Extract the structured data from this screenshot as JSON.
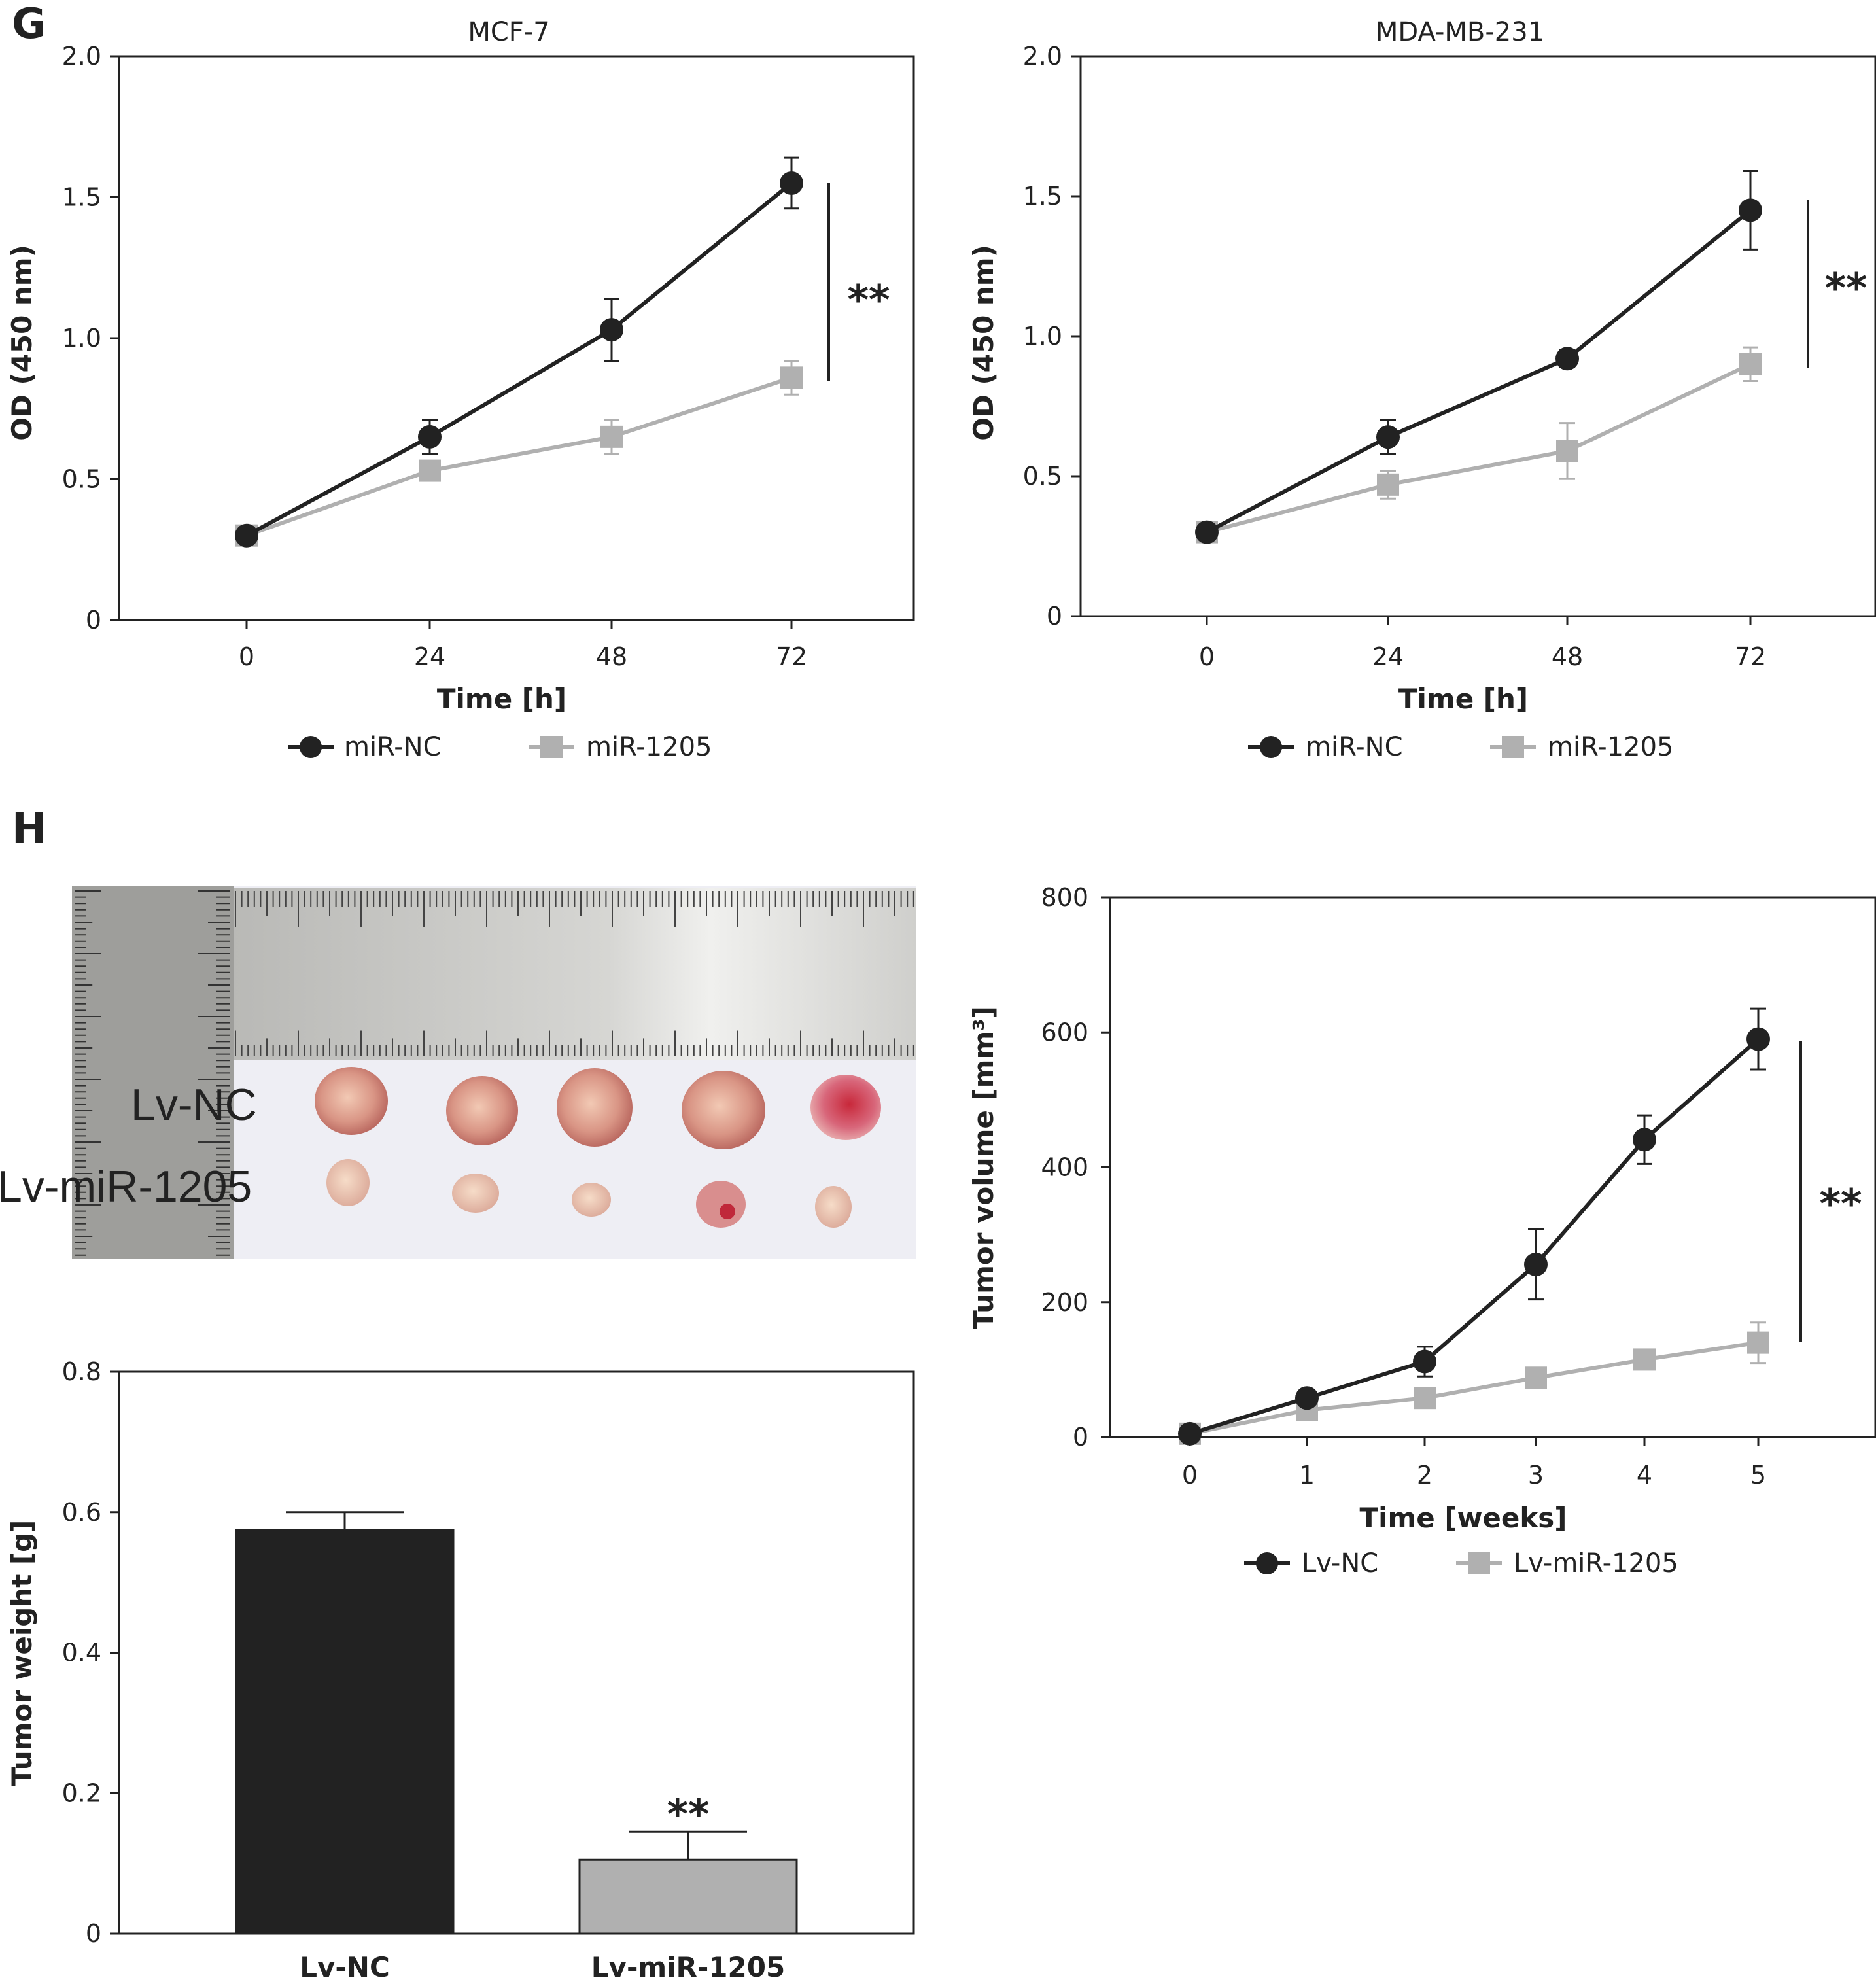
{
  "panels": {
    "g": "G",
    "h": "H"
  },
  "colors": {
    "nc": "#222222",
    "mir": "#b0b0b0",
    "axis": "#222222"
  },
  "photo": {
    "label_nc": "Lv-NC",
    "label_mir": "Lv-miR-1205"
  },
  "chart_data": [
    {
      "type": "line",
      "title": "MCF-7",
      "xlabel": "Time [h]",
      "ylabel": "OD (450 nm)",
      "x": [
        0,
        24,
        48,
        72
      ],
      "x_ticks": [
        "0",
        "24",
        "48",
        "72"
      ],
      "ylim": [
        0,
        2.0
      ],
      "y_ticks": [
        "0",
        "0.5",
        "1.0",
        "1.5",
        "2.0"
      ],
      "series": [
        {
          "name": "miR-NC",
          "marker": "circle",
          "values": [
            0.3,
            0.65,
            1.03,
            1.55
          ],
          "errors": [
            0.02,
            0.06,
            0.11,
            0.09
          ]
        },
        {
          "name": "miR-1205",
          "marker": "square",
          "values": [
            0.3,
            0.53,
            0.65,
            0.86
          ],
          "errors": [
            0.02,
            0.03,
            0.06,
            0.06
          ]
        }
      ],
      "significance": "**",
      "legend": "bottom"
    },
    {
      "type": "line",
      "title": "MDA-MB-231",
      "xlabel": "Time [h]",
      "ylabel": "OD (450 nm)",
      "x": [
        0,
        24,
        48,
        72
      ],
      "x_ticks": [
        "0",
        "24",
        "48",
        "72"
      ],
      "ylim": [
        0,
        2.0
      ],
      "y_ticks": [
        "0",
        "0.5",
        "1.0",
        "1.5",
        "2.0"
      ],
      "series": [
        {
          "name": "miR-NC",
          "marker": "circle",
          "values": [
            0.3,
            0.64,
            0.92,
            1.45
          ],
          "errors": [
            0.02,
            0.06,
            0.03,
            0.14
          ]
        },
        {
          "name": "miR-1205",
          "marker": "square",
          "values": [
            0.3,
            0.47,
            0.59,
            0.9
          ],
          "errors": [
            0.02,
            0.05,
            0.1,
            0.06
          ]
        }
      ],
      "significance": "**",
      "legend": "bottom"
    },
    {
      "type": "line",
      "title": "",
      "xlabel": "Time [weeks]",
      "ylabel": "Tumor volume [mm³]",
      "x": [
        0,
        1,
        2,
        3,
        4,
        5
      ],
      "x_ticks": [
        "0",
        "1",
        "2",
        "3",
        "4",
        "5"
      ],
      "ylim": [
        0,
        800
      ],
      "y_ticks": [
        "0",
        "200",
        "400",
        "600",
        "800"
      ],
      "series": [
        {
          "name": "Lv-NC",
          "marker": "circle",
          "values": [
            5,
            58,
            112,
            256,
            441,
            590
          ],
          "errors": [
            5,
            5,
            22,
            52,
            36,
            45
          ]
        },
        {
          "name": "Lv-miR-1205",
          "marker": "square",
          "values": [
            5,
            40,
            58,
            88,
            115,
            140
          ],
          "errors": [
            5,
            5,
            6,
            8,
            8,
            30
          ]
        }
      ],
      "significance": "**",
      "legend": "bottom"
    },
    {
      "type": "bar",
      "title": "",
      "xlabel": "",
      "ylabel": "Tumor weight [g]",
      "categories": [
        "Lv-NC",
        "Lv-miR-1205"
      ],
      "values": [
        0.575,
        0.105
      ],
      "errors": [
        0.025,
        0.04
      ],
      "ylim": [
        0,
        0.8
      ],
      "y_ticks": [
        "0",
        "0.2",
        "0.4",
        "0.6",
        "0.8"
      ],
      "significance": "**"
    }
  ]
}
